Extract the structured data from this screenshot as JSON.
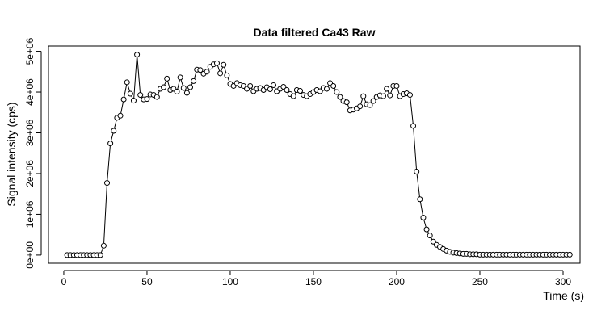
{
  "chart_data": {
    "type": "line",
    "title": "Data filtered Ca43 Raw",
    "x_label": "Time (s)",
    "y_label": "Signal intensity (cps)",
    "x": [
      2,
      4,
      6,
      8,
      10,
      12,
      14,
      16,
      18,
      20,
      22,
      24,
      26,
      28,
      30,
      32,
      34,
      36,
      38,
      40,
      42,
      44,
      46,
      48,
      50,
      52,
      54,
      56,
      58,
      60,
      62,
      64,
      66,
      68,
      70,
      72,
      74,
      76,
      78,
      80,
      82,
      84,
      86,
      88,
      90,
      92,
      94,
      96,
      98,
      100,
      102,
      104,
      106,
      108,
      110,
      112,
      114,
      116,
      118,
      120,
      122,
      124,
      126,
      128,
      130,
      132,
      134,
      136,
      138,
      140,
      142,
      144,
      146,
      148,
      150,
      152,
      154,
      156,
      158,
      160,
      162,
      164,
      166,
      168,
      170,
      172,
      174,
      176,
      178,
      180,
      182,
      184,
      186,
      188,
      190,
      192,
      194,
      196,
      198,
      200,
      202,
      204,
      206,
      208,
      210,
      212,
      214,
      216,
      218,
      220,
      222,
      224,
      226,
      228,
      230,
      232,
      234,
      236,
      238,
      240,
      242,
      244,
      246,
      248,
      250,
      252,
      254,
      256,
      258,
      260,
      262,
      264,
      266,
      268,
      270,
      272,
      274,
      276,
      278,
      280,
      282,
      284,
      286,
      288,
      290,
      292,
      294,
      296,
      298,
      300,
      302,
      304
    ],
    "values": [
      0,
      0,
      0,
      0,
      0,
      0,
      0,
      0,
      0,
      0,
      0,
      230000.0,
      1770000.0,
      2740000.0,
      3050000.0,
      3370000.0,
      3420000.0,
      3820000.0,
      4240000.0,
      3960000.0,
      3790000.0,
      4920000.0,
      3930000.0,
      3820000.0,
      3830000.0,
      3940000.0,
      3930000.0,
      3880000.0,
      4080000.0,
      4120000.0,
      4330000.0,
      4050000.0,
      4080000.0,
      4010000.0,
      4360000.0,
      4100000.0,
      3980000.0,
      4120000.0,
      4270000.0,
      4550000.0,
      4540000.0,
      4450000.0,
      4500000.0,
      4620000.0,
      4680000.0,
      4710000.0,
      4460000.0,
      4670000.0,
      4410000.0,
      4200000.0,
      4150000.0,
      4220000.0,
      4170000.0,
      4150000.0,
      4080000.0,
      4150000.0,
      4020000.0,
      4080000.0,
      4100000.0,
      4050000.0,
      4120000.0,
      4070000.0,
      4170000.0,
      4020000.0,
      4080000.0,
      4130000.0,
      4050000.0,
      3950000.0,
      3900000.0,
      4050000.0,
      4030000.0,
      3930000.0,
      3900000.0,
      3950000.0,
      4000000.0,
      4050000.0,
      4020000.0,
      4100000.0,
      4080000.0,
      4220000.0,
      4150000.0,
      4000000.0,
      3880000.0,
      3780000.0,
      3750000.0,
      3550000.0,
      3570000.0,
      3600000.0,
      3650000.0,
      3900000.0,
      3700000.0,
      3680000.0,
      3780000.0,
      3880000.0,
      3920000.0,
      3900000.0,
      4080000.0,
      3920000.0,
      4150000.0,
      4150000.0,
      3900000.0,
      3950000.0,
      3970000.0,
      3930000.0,
      3170000.0,
      2050000.0,
      1370000.0,
      920000.0,
      630000.0,
      480000.0,
      330000.0,
      250000.0,
      200000.0,
      150000.0,
      110000.0,
      80000.0,
      60000.0,
      50000.0,
      40000.0,
      30000.0,
      30000.0,
      20000.0,
      20000.0,
      20000.0,
      10000.0,
      10000.0,
      10000.0,
      10000.0,
      10000.0,
      10000.0,
      10000.0,
      10000.0,
      10000.0,
      10000.0,
      10000.0,
      10000.0,
      10000.0,
      10000.0,
      10000.0,
      10000.0,
      10000.0,
      10000.0,
      10000.0,
      10000.0,
      10000.0,
      10000.0,
      10000.0,
      10000.0,
      10000.0,
      10000.0,
      10000.0,
      10000.0
    ],
    "color": "#000000",
    "xlim": [
      -9.2,
      310.2
    ],
    "ylim": [
      -200000.0,
      5130000.0
    ],
    "xticks": [
      0,
      50,
      100,
      150,
      200,
      250,
      300
    ],
    "yticks": [
      {
        "value": 0,
        "label": "0e+00"
      },
      {
        "value": 1000000,
        "label": "1e+06"
      },
      {
        "value": 2000000,
        "label": "2e+06"
      },
      {
        "value": 3000000,
        "label": "3e+06"
      },
      {
        "value": 4000000,
        "label": "4e+06"
      },
      {
        "value": 5000000,
        "label": "5e+06"
      }
    ]
  }
}
